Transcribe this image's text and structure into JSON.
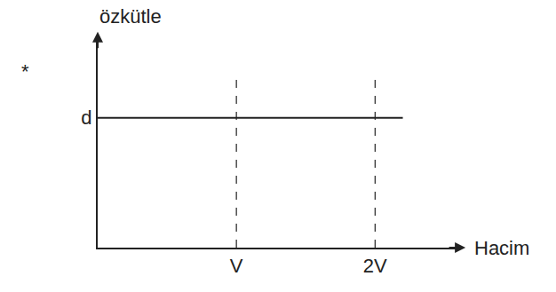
{
  "chart_data": {
    "type": "line",
    "x_label": "Hacim",
    "y_label": "özkütle",
    "x": [
      0,
      2.2
    ],
    "values": [
      1,
      1
    ],
    "color": "#222222",
    "line_style": "solid",
    "xlim": [
      0,
      2.6
    ],
    "xticks": [
      {
        "value": 1,
        "label": "V"
      },
      {
        "value": 2,
        "label": "2V"
      }
    ],
    "ylim": [
      0,
      1.6
    ],
    "yticks": [
      {
        "value": 1,
        "label": "d"
      }
    ],
    "vlines": [
      1,
      2
    ],
    "annotations": [
      {
        "text": "*"
      }
    ],
    "grid": false
  }
}
